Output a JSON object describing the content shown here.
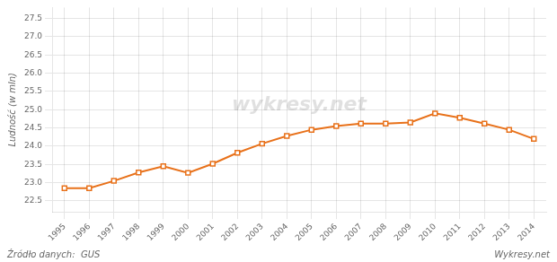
{
  "chart_data": {
    "type": "line",
    "ylabel": "Ludność (w mln)",
    "x": [
      1995,
      1996,
      1997,
      1998,
      1999,
      2000,
      2001,
      2002,
      2003,
      2004,
      2005,
      2006,
      2007,
      2008,
      2009,
      2010,
      2011,
      2012,
      2013,
      2014
    ],
    "values": [
      22.85,
      22.85,
      23.05,
      23.28,
      23.45,
      23.27,
      23.52,
      23.82,
      24.07,
      24.28,
      24.45,
      24.55,
      24.62,
      24.62,
      24.65,
      24.9,
      24.78,
      24.62,
      24.45,
      24.2
    ],
    "color": "#e8711a",
    "marker": "square",
    "xlim": [
      1994.5,
      2014.5
    ],
    "xticks": [
      1995,
      1996,
      1997,
      1998,
      1999,
      2000,
      2001,
      2002,
      2003,
      2004,
      2005,
      2006,
      2007,
      2008,
      2009,
      2010,
      2011,
      2012,
      2013,
      2014
    ],
    "ylim": [
      22.2,
      27.8
    ],
    "yticks": [
      22.5,
      {
        "value": 23.0,
        "label": "23.0"
      },
      23.5,
      {
        "value": 24.0,
        "label": "24.0"
      },
      24.5,
      {
        "value": 25.0,
        "label": "25.0"
      },
      25.5,
      {
        "value": 26.0,
        "label": "26.0"
      },
      26.5,
      {
        "value": 27.0,
        "label": "27.0"
      },
      27.5
    ],
    "grid": true,
    "annotations": [
      "wykresy.net",
      "Źródło danych:  GUS",
      "Wykresy.net"
    ]
  }
}
